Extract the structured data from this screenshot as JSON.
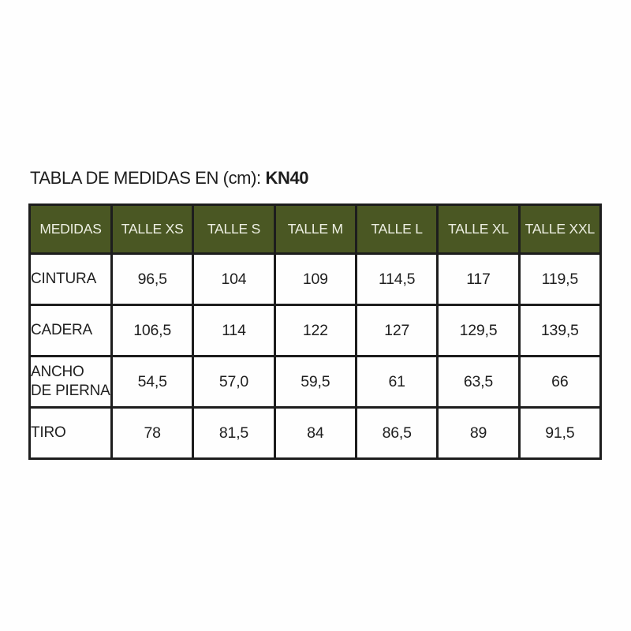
{
  "page": {
    "title_prefix": "TABLA DE MEDIDAS EN (cm): ",
    "title_code": "KN40"
  },
  "colors": {
    "header_bg": "#4a5723",
    "header_text": "#edefe2",
    "grid_border": "#1d1d1d",
    "background": "#ffffff",
    "body_text": "#1f1f1f"
  },
  "chart_data": {
    "type": "table",
    "title": "TABLA DE MEDIDAS EN (cm): KN40",
    "units": "cm",
    "columns": [
      "MEDIDAS",
      "TALLE XS",
      "TALLE S",
      "TALLE M",
      "TALLE L",
      "TALLE XL",
      "TALLE XXL"
    ],
    "rows": [
      {
        "label": "CINTURA",
        "values": [
          "96,5",
          "104",
          "109",
          "114,5",
          "117",
          "119,5"
        ]
      },
      {
        "label": "CADERA",
        "values": [
          "106,5",
          "114",
          "122",
          "127",
          "129,5",
          "139,5"
        ]
      },
      {
        "label": "ANCHO\nDE PIERNA",
        "values": [
          "54,5",
          "57,0",
          "59,5",
          "61",
          "63,5",
          "66"
        ]
      },
      {
        "label": "TIRO",
        "values": [
          "78",
          "81,5",
          "84",
          "86,5",
          "89",
          "91,5"
        ]
      }
    ],
    "layout": {
      "header_row_style": "dark-olive background, off-white text",
      "grid": true,
      "first_column_align": "left",
      "value_align": "center"
    }
  }
}
